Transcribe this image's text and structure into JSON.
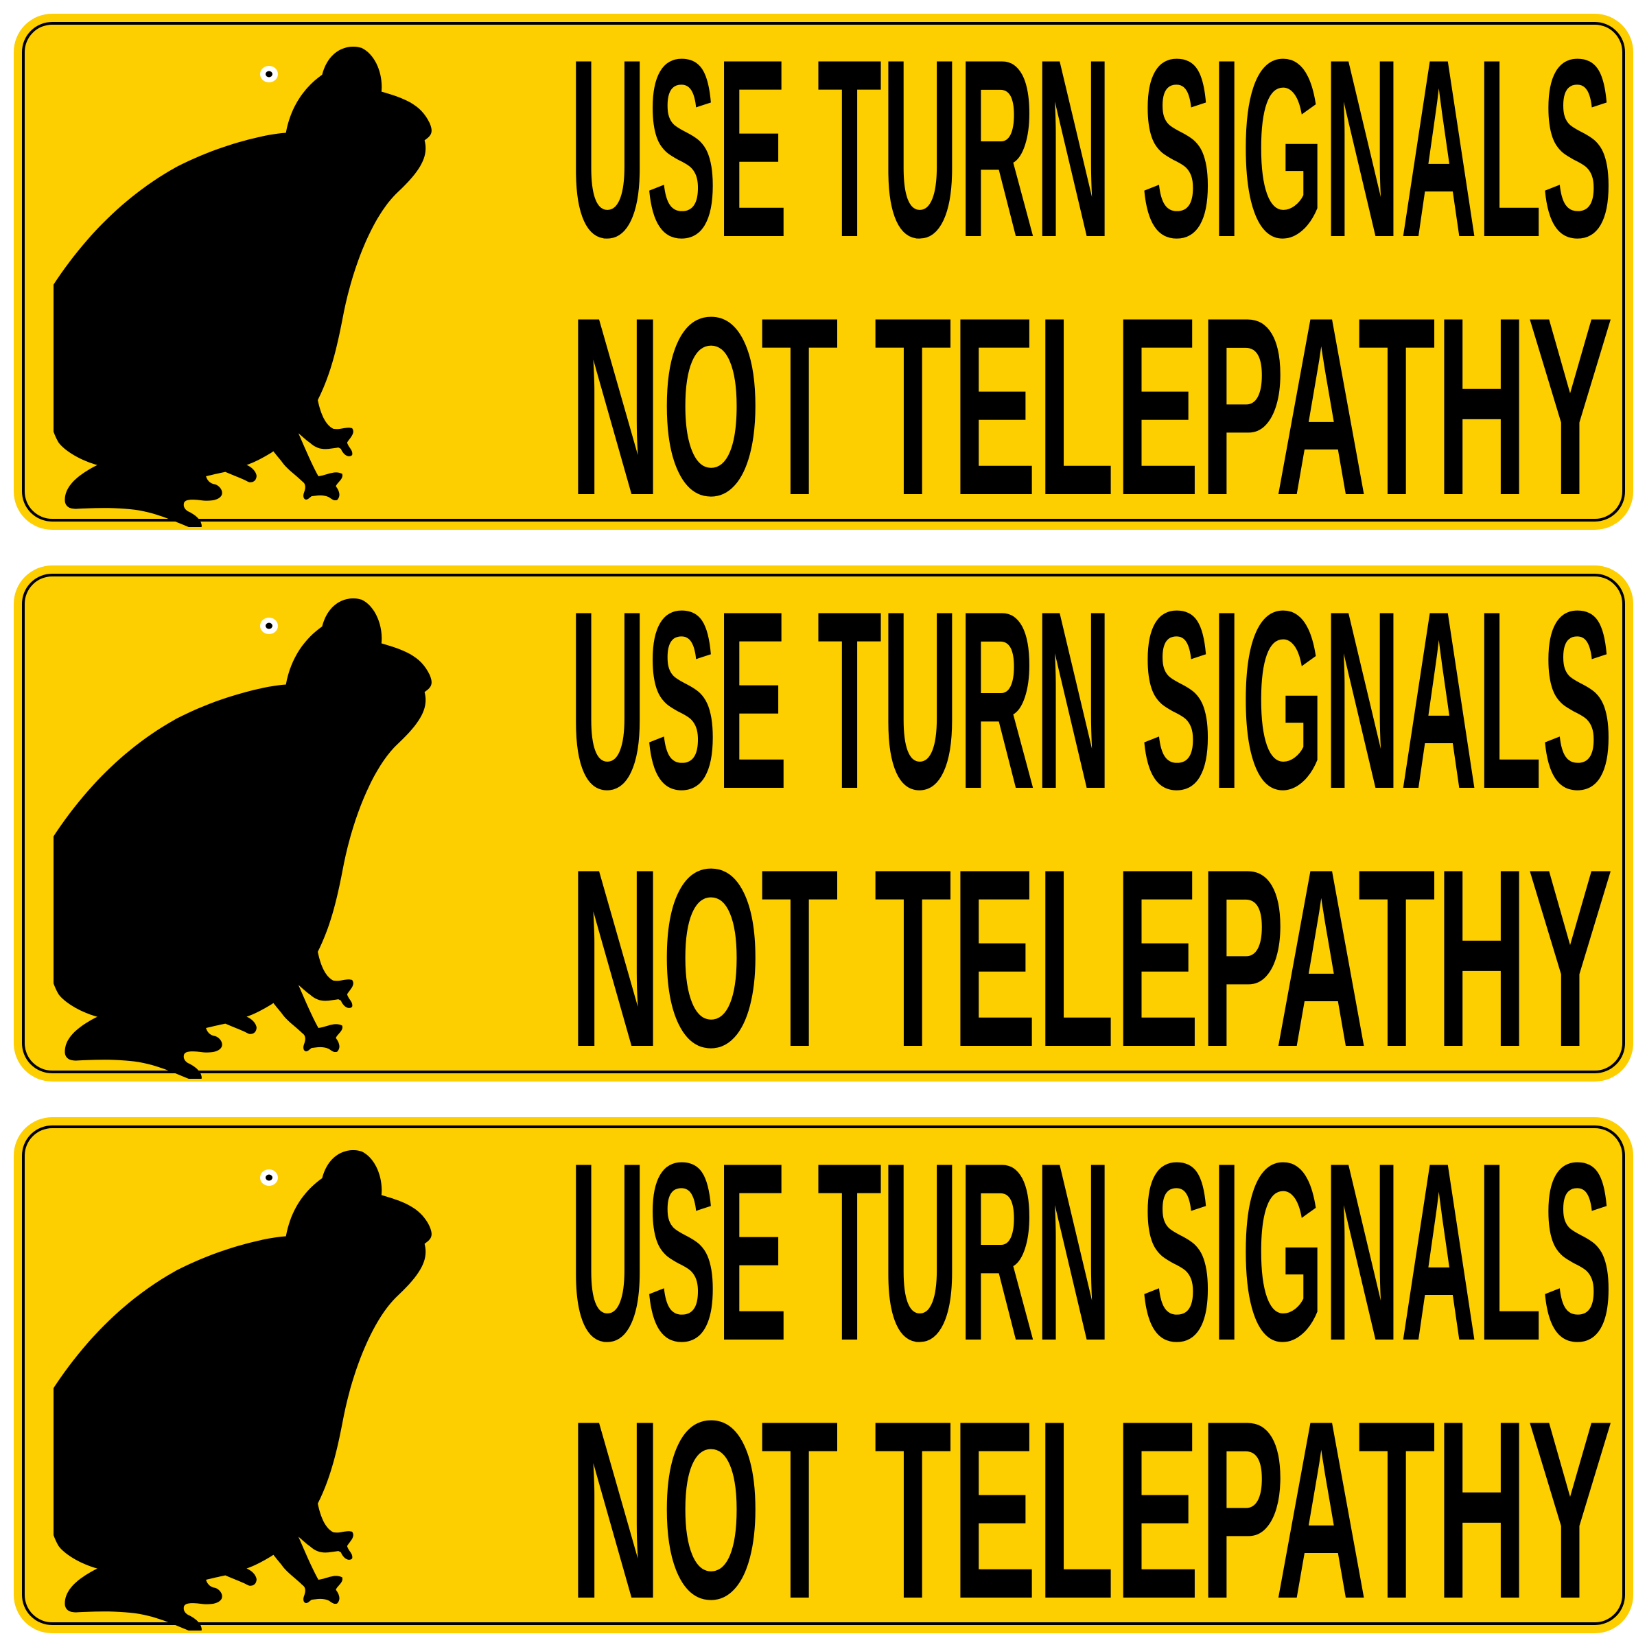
{
  "colors": {
    "sticker_background": "#fdce00",
    "ink": "#000000",
    "eye_white": "#ffffff"
  },
  "stickers": [
    {
      "icon": "frog-silhouette-icon",
      "line1": "USE TURN SIGNALS",
      "line2": "NOT TELEPATHY"
    },
    {
      "icon": "frog-silhouette-icon",
      "line1": "USE TURN SIGNALS",
      "line2": "NOT TELEPATHY"
    },
    {
      "icon": "frog-silhouette-icon",
      "line1": "USE TURN SIGNALS",
      "line2": "NOT TELEPATHY"
    }
  ]
}
